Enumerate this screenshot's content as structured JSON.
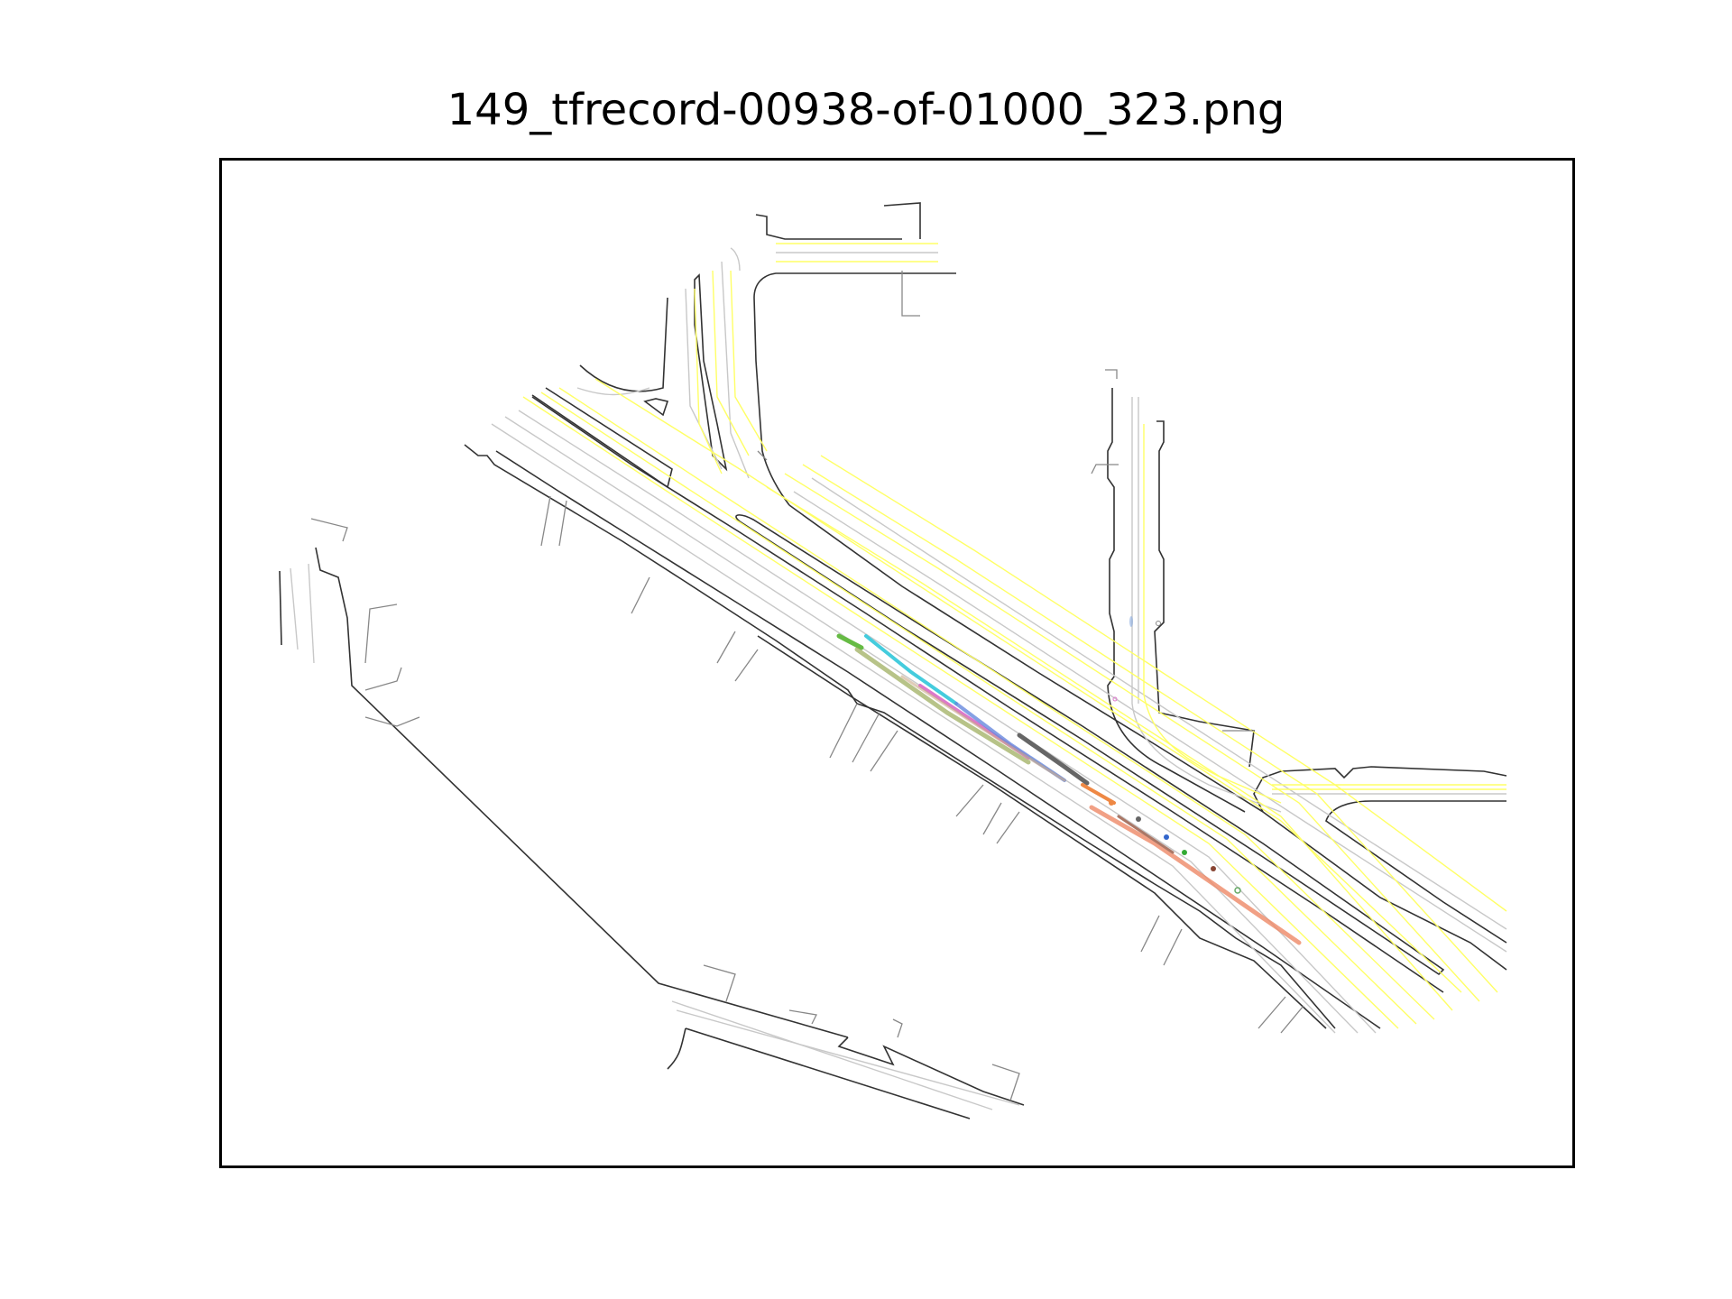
{
  "figure": {
    "title": "149_tfrecord-00938-of-01000_323.png"
  },
  "colors": {
    "road_edge": "#333333",
    "lane_line": "#c8c8c8",
    "lane_center_yellow": "#ffff66",
    "frame": "#000000"
  },
  "agents": [
    {
      "name": "agent-green",
      "color": "#66bb44"
    },
    {
      "name": "agent-cyan",
      "color": "#44ccdd"
    },
    {
      "name": "agent-pink",
      "color": "#dd77cc"
    },
    {
      "name": "agent-olive",
      "color": "#99aa55"
    },
    {
      "name": "agent-blue",
      "color": "#6688dd"
    },
    {
      "name": "agent-grey",
      "color": "#666666"
    },
    {
      "name": "agent-orange",
      "color": "#ee8844"
    },
    {
      "name": "agent-salmon",
      "color": "#ee8866"
    }
  ]
}
